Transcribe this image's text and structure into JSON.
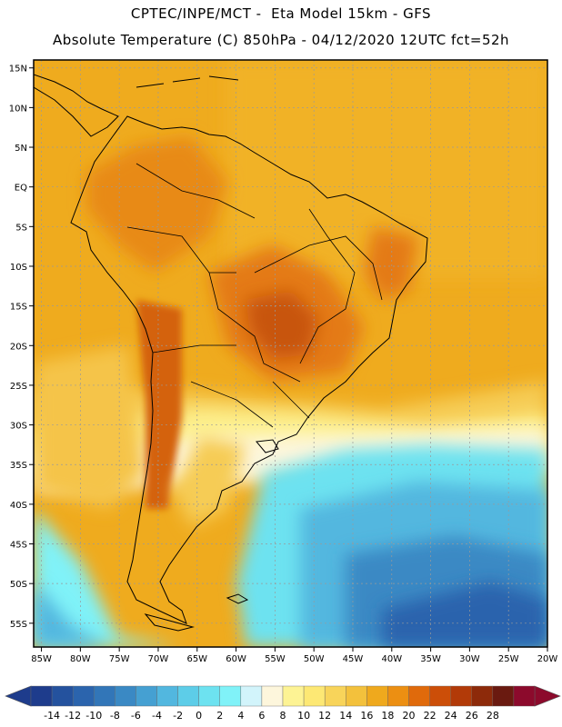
{
  "header": {
    "line1": "CPTEC/INPE/MCT -  Eta Model 15km - GFS",
    "line2": "Absolute Temperature (C) 850hPa - 04/12/2020 12UTC fct=52h"
  },
  "map": {
    "lat_labels": [
      "15N",
      "10N",
      "5N",
      "EQ",
      "5S",
      "10S",
      "15S",
      "20S",
      "25S",
      "30S",
      "35S",
      "40S",
      "45S",
      "50S",
      "55S"
    ],
    "lat_values": [
      15,
      10,
      5,
      0,
      -5,
      -10,
      -15,
      -20,
      -25,
      -30,
      -35,
      -40,
      -45,
      -50,
      -55
    ],
    "lon_labels": [
      "85W",
      "80W",
      "75W",
      "70W",
      "65W",
      "60W",
      "55W",
      "50W",
      "45W",
      "40W",
      "35W",
      "30W",
      "25W",
      "20W"
    ],
    "lon_values": [
      -85,
      -80,
      -75,
      -70,
      -65,
      -60,
      -55,
      -50,
      -45,
      -40,
      -35,
      -30,
      -25,
      -20
    ],
    "extent": {
      "lon_min": -86,
      "lon_max": -20,
      "lat_min": -58,
      "lat_max": 16
    }
  },
  "colorbar": {
    "labels": [
      "-14",
      "-12",
      "-10",
      "-8",
      "-6",
      "-4",
      "-2",
      "0",
      "2",
      "4",
      "6",
      "8",
      "10",
      "12",
      "14",
      "16",
      "18",
      "20",
      "22",
      "24",
      "26",
      "28"
    ],
    "colors": [
      "#1e3c8c",
      "#24529e",
      "#2b64ad",
      "#3276b8",
      "#3a89c4",
      "#45a0d2",
      "#52b7df",
      "#5dcde8",
      "#6de2f0",
      "#80f2f8",
      "#d2f4fb",
      "#fdf6dc",
      "#fdf394",
      "#fde874",
      "#f8d45a",
      "#f3c13c",
      "#efa91d",
      "#ec8f12",
      "#e06a0b",
      "#cc4e08",
      "#b23a08",
      "#8d2a0a",
      "#6a1a10",
      "#8c0a2c"
    ],
    "under_color": "#1e3c8c",
    "over_color": "#8c0a2c"
  }
}
